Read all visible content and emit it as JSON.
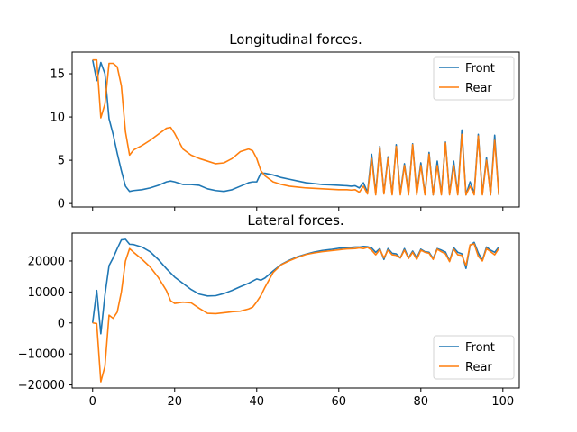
{
  "chart_data": [
    {
      "type": "line",
      "title": "Longitudinal forces.",
      "xlabel": "",
      "ylabel": "",
      "xlim": [
        -5,
        104
      ],
      "ylim": [
        -0.4,
        17.5
      ],
      "xticks": [
        0,
        20,
        40,
        60,
        80,
        100
      ],
      "show_xtick_labels": false,
      "yticks": [
        0,
        5,
        10,
        15
      ],
      "ytick_labels": [
        "0",
        "5",
        "10",
        "15"
      ],
      "legend": "top-right",
      "series": [
        {
          "name": "Front",
          "color": "#1f77b4",
          "x": [
            0,
            1,
            2,
            3,
            4,
            5,
            6,
            7,
            8,
            9,
            10,
            12,
            14,
            16,
            18,
            19,
            20,
            22,
            24,
            26,
            28,
            30,
            32,
            34,
            36,
            38,
            39,
            40,
            41,
            42,
            44,
            46,
            48,
            50,
            52,
            54,
            56,
            58,
            60,
            62,
            63,
            64,
            65,
            66,
            67,
            68,
            69,
            70,
            71,
            72,
            73,
            74,
            75,
            76,
            77,
            78,
            79,
            80,
            81,
            82,
            83,
            84,
            85,
            86,
            87,
            88,
            89,
            90,
            91,
            92,
            93,
            94,
            95,
            96,
            97,
            98,
            99
          ],
          "y": [
            16.6,
            14.2,
            16.3,
            15.0,
            9.8,
            8.0,
            5.8,
            3.8,
            2.0,
            1.4,
            1.5,
            1.6,
            1.8,
            2.1,
            2.5,
            2.6,
            2.5,
            2.2,
            2.2,
            2.1,
            1.7,
            1.5,
            1.4,
            1.6,
            2.0,
            2.4,
            2.5,
            2.5,
            3.5,
            3.5,
            3.3,
            3.0,
            2.8,
            2.6,
            2.4,
            2.3,
            2.2,
            2.15,
            2.1,
            2.05,
            2.0,
            2.05,
            1.8,
            2.4,
            1.3,
            5.7,
            1.2,
            6.6,
            1.2,
            5.4,
            1.1,
            6.8,
            1.2,
            4.6,
            1.2,
            6.9,
            1.2,
            4.7,
            1.1,
            5.9,
            1.0,
            4.9,
            1.1,
            7.1,
            1.1,
            4.9,
            1.1,
            8.5,
            1.0,
            2.5,
            1.2,
            8.0,
            1.1,
            5.3,
            1.0,
            7.9,
            1.0
          ]
        },
        {
          "name": "Rear",
          "color": "#ff7f0e",
          "x": [
            0,
            1,
            2,
            3,
            4,
            5,
            6,
            7,
            8,
            9,
            10,
            12,
            14,
            16,
            18,
            19,
            20,
            22,
            24,
            26,
            28,
            30,
            32,
            34,
            36,
            38,
            39,
            40,
            41,
            42,
            44,
            46,
            48,
            50,
            52,
            54,
            56,
            58,
            60,
            62,
            63,
            64,
            65,
            66,
            67,
            68,
            69,
            70,
            71,
            72,
            73,
            74,
            75,
            76,
            77,
            78,
            79,
            80,
            81,
            82,
            83,
            84,
            85,
            86,
            87,
            88,
            89,
            90,
            91,
            92,
            93,
            94,
            95,
            96,
            97,
            98,
            99
          ],
          "y": [
            16.6,
            16.6,
            9.9,
            11.5,
            16.2,
            16.2,
            15.8,
            13.6,
            8.3,
            5.6,
            6.2,
            6.7,
            7.3,
            8.0,
            8.7,
            8.8,
            8.1,
            6.3,
            5.6,
            5.2,
            4.9,
            4.6,
            4.7,
            5.2,
            6.0,
            6.3,
            6.1,
            5.2,
            3.8,
            3.2,
            2.5,
            2.2,
            2.0,
            1.9,
            1.8,
            1.75,
            1.7,
            1.65,
            1.6,
            1.6,
            1.55,
            1.6,
            1.3,
            2.0,
            1.1,
            5.2,
            1.0,
            6.5,
            1.1,
            5.2,
            1.0,
            6.6,
            1.0,
            4.4,
            1.0,
            6.8,
            1.0,
            4.4,
            1.0,
            5.7,
            1.0,
            4.4,
            1.0,
            7.0,
            1.0,
            4.4,
            1.0,
            8.0,
            1.0,
            2.0,
            1.0,
            7.8,
            1.0,
            5.0,
            1.0,
            7.3,
            1.0
          ]
        }
      ]
    },
    {
      "type": "line",
      "title": "Lateral forces.",
      "xlabel": "",
      "ylabel": "",
      "xlim": [
        -5,
        104
      ],
      "ylim": [
        -21000,
        29000
      ],
      "xticks": [
        0,
        20,
        40,
        60,
        80,
        100
      ],
      "xtick_labels": [
        "0",
        "20",
        "40",
        "60",
        "80",
        "100"
      ],
      "show_xtick_labels": true,
      "yticks": [
        -20000,
        -10000,
        0,
        10000,
        20000
      ],
      "ytick_labels": [
        "−20000",
        "−10000",
        "0",
        "10000",
        "20000"
      ],
      "legend": "bottom-right",
      "series": [
        {
          "name": "Front",
          "color": "#1f77b4",
          "x": [
            0,
            1,
            2,
            3,
            4,
            5,
            6,
            7,
            8,
            9,
            10,
            12,
            14,
            16,
            18,
            20,
            22,
            24,
            26,
            28,
            30,
            32,
            34,
            36,
            38,
            40,
            41,
            42,
            44,
            46,
            48,
            50,
            52,
            54,
            56,
            58,
            60,
            62,
            64,
            65,
            66,
            67,
            68,
            69,
            70,
            71,
            72,
            73,
            74,
            75,
            76,
            77,
            78,
            79,
            80,
            81,
            82,
            83,
            84,
            85,
            86,
            87,
            88,
            89,
            90,
            91,
            92,
            93,
            94,
            95,
            96,
            97,
            98,
            99
          ],
          "y": [
            0,
            10500,
            -3500,
            9000,
            18500,
            21000,
            24000,
            26800,
            27000,
            25400,
            25300,
            24500,
            23000,
            20500,
            17500,
            14800,
            12800,
            10800,
            9300,
            8700,
            8800,
            9500,
            10500,
            11700,
            12800,
            14200,
            13800,
            14500,
            16800,
            18900,
            20300,
            21400,
            22200,
            22900,
            23400,
            23700,
            24100,
            24300,
            24500,
            24500,
            24700,
            24600,
            24200,
            22800,
            24000,
            20500,
            24000,
            22500,
            22300,
            21000,
            24000,
            21000,
            23200,
            21000,
            23800,
            23000,
            22800,
            20800,
            24000,
            23500,
            22900,
            20000,
            24300,
            22800,
            22300,
            17600,
            25000,
            26000,
            22600,
            20200,
            24500,
            23500,
            22800,
            24500
          ]
        },
        {
          "name": "Rear",
          "color": "#ff7f0e",
          "x": [
            0,
            1,
            2,
            3,
            4,
            5,
            6,
            7,
            8,
            9,
            10,
            12,
            14,
            16,
            18,
            19,
            20,
            22,
            24,
            26,
            28,
            30,
            32,
            34,
            36,
            38,
            39,
            40,
            41,
            42,
            44,
            46,
            48,
            50,
            52,
            54,
            56,
            58,
            60,
            62,
            64,
            65,
            66,
            67,
            68,
            69,
            70,
            71,
            72,
            73,
            74,
            75,
            76,
            77,
            78,
            79,
            80,
            81,
            82,
            83,
            84,
            85,
            86,
            87,
            88,
            89,
            90,
            91,
            92,
            93,
            94,
            95,
            96,
            97,
            98,
            99
          ],
          "y": [
            0,
            -200,
            -19000,
            -14000,
            2500,
            1500,
            3500,
            10000,
            20000,
            24000,
            22800,
            20600,
            18100,
            14700,
            10400,
            7200,
            6300,
            6700,
            6500,
            4700,
            3100,
            3000,
            3300,
            3600,
            3800,
            4500,
            5100,
            6800,
            8800,
            11500,
            16300,
            18800,
            20100,
            21200,
            22100,
            22600,
            23000,
            23300,
            23600,
            23900,
            24000,
            24200,
            24000,
            24400,
            23500,
            22000,
            23700,
            21000,
            23500,
            22000,
            21800,
            21000,
            23500,
            20800,
            22800,
            20500,
            23500,
            22800,
            22500,
            20500,
            23800,
            23000,
            22300,
            19800,
            23800,
            22000,
            21800,
            18500,
            25200,
            25500,
            21500,
            20000,
            24000,
            23000,
            22000,
            24000
          ]
        }
      ]
    }
  ]
}
